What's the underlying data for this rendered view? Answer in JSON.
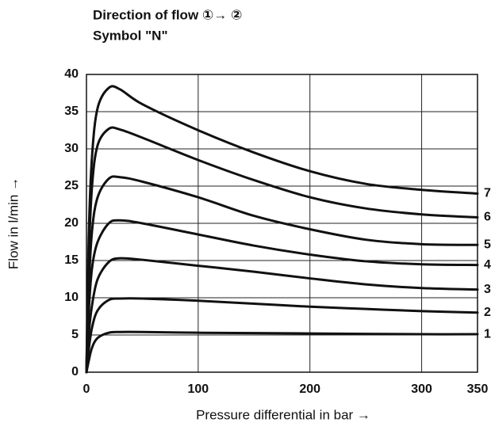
{
  "chart_data": {
    "type": "line",
    "title": "Direction of flow ①→ ②",
    "subtitle": "Symbol \"N\"",
    "x_label": "Pressure differential in bar →",
    "y_label": "Flow in l/min →",
    "x": [
      0,
      2,
      5,
      10,
      20,
      30,
      50,
      100,
      150,
      200,
      250,
      300,
      350
    ],
    "series": [
      {
        "name": "1",
        "color": "#111111",
        "values": [
          0,
          1.5,
          3.3,
          4.6,
          5.3,
          5.4,
          5.4,
          5.3,
          5.25,
          5.2,
          5.15,
          5.1,
          5.1
        ]
      },
      {
        "name": "2",
        "color": "#111111",
        "values": [
          0,
          3,
          6,
          8.3,
          9.7,
          9.9,
          9.9,
          9.6,
          9.2,
          8.8,
          8.5,
          8.2,
          8.0
        ]
      },
      {
        "name": "3",
        "color": "#111111",
        "values": [
          0,
          5,
          9,
          12.5,
          14.8,
          15.3,
          15.1,
          14.3,
          13.5,
          12.6,
          11.8,
          11.3,
          11.1
        ]
      },
      {
        "name": "4",
        "color": "#111111",
        "values": [
          0,
          8,
          14,
          17.5,
          20,
          20.4,
          20,
          18.5,
          17,
          15.8,
          14.9,
          14.5,
          14.4
        ]
      },
      {
        "name": "5",
        "color": "#111111",
        "values": [
          0,
          11,
          19,
          23.5,
          26,
          26.2,
          25.6,
          23.5,
          21,
          19.2,
          17.8,
          17.2,
          17.1
        ]
      },
      {
        "name": "6",
        "color": "#111111",
        "values": [
          0,
          15,
          25,
          30.5,
          32.7,
          32.6,
          31.5,
          28.5,
          25.8,
          23.5,
          22,
          21.2,
          20.8
        ]
      },
      {
        "name": "7",
        "color": "#111111",
        "values": [
          0,
          18,
          29,
          35.5,
          38.2,
          38,
          36,
          32.5,
          29.5,
          27,
          25.3,
          24.5,
          24
        ]
      }
    ],
    "xlim": [
      0,
      350
    ],
    "xticks": [
      0,
      100,
      200,
      300,
      350
    ],
    "ylim": [
      0,
      40
    ],
    "yticks": [
      0,
      5,
      10,
      15,
      20,
      25,
      30,
      35,
      40
    ],
    "grid": true
  }
}
